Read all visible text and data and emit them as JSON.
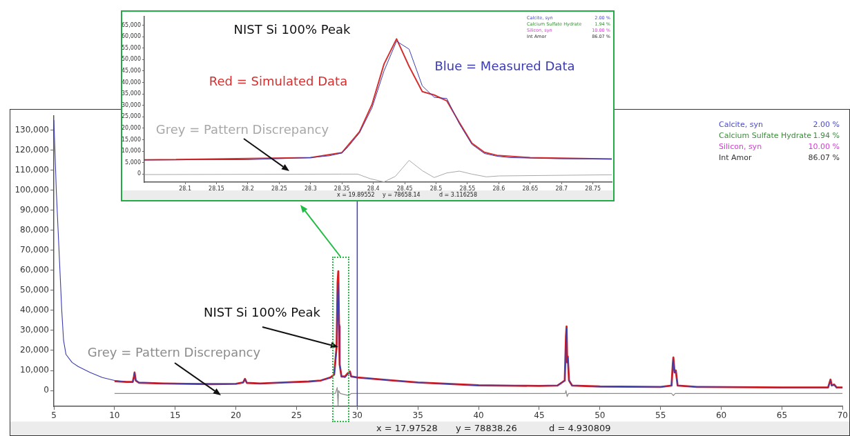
{
  "chart_data": [
    {
      "type": "line",
      "xlim": [
        5,
        70
      ],
      "ylim": [
        -7900,
        137000
      ],
      "xticks": [
        5,
        10,
        15,
        20,
        25,
        30,
        35,
        40,
        45,
        50,
        55,
        60,
        65,
        70
      ],
      "yticks": [
        0,
        {
          "value": 10000,
          "label": "10,000"
        },
        {
          "value": 20000,
          "label": "20,000"
        },
        {
          "value": 30000,
          "label": "30,000"
        },
        {
          "value": 40000,
          "label": "40,000"
        },
        {
          "value": 50000,
          "label": "50,000"
        },
        {
          "value": 60000,
          "label": "60,000"
        },
        {
          "value": 70000,
          "label": "70,000"
        },
        {
          "value": 80000,
          "label": "80,000"
        },
        {
          "value": 90000,
          "label": "90,000"
        },
        {
          "value": 100000,
          "label": "100,000"
        },
        {
          "value": 110000,
          "label": "110,000"
        },
        {
          "value": 120000,
          "label": "120,000"
        },
        {
          "value": 130000,
          "label": "130,000"
        }
      ],
      "series": [
        {
          "color": "#3b3bb0",
          "x": [
            5,
            5.1,
            5.2,
            5.35,
            5.5,
            5.65,
            5.8,
            6,
            6.5,
            7,
            8,
            9,
            10,
            11,
            11.5,
            11.6,
            11.65,
            11.75,
            12,
            14,
            16,
            18,
            20,
            20.6,
            20.75,
            20.9,
            22,
            24,
            26,
            27,
            27.8,
            28.1,
            28.3,
            28.38,
            28.44,
            28.5,
            28.55,
            28.7,
            29,
            29.2,
            29.4,
            29.5,
            30,
            31,
            33,
            35,
            40,
            43,
            45,
            46.5,
            47.1,
            47.2,
            47.25,
            47.3,
            47.35,
            47.45,
            47.7,
            50,
            55,
            55.9,
            56,
            56.05,
            56.15,
            56.25,
            56.4,
            58,
            65,
            68.8,
            69,
            69.1,
            69.3,
            69.5,
            70
          ],
          "values": [
            135000,
            118000,
            100000,
            80000,
            60000,
            40000,
            25000,
            18000,
            14000,
            12000,
            9000,
            6500,
            5000,
            4300,
            4200,
            7000,
            8800,
            5000,
            4000,
            3500,
            3300,
            3200,
            3300,
            4000,
            5800,
            3800,
            3500,
            4000,
            4500,
            5000,
            6500,
            8000,
            20000,
            48000,
            54000,
            33000,
            13000,
            7000,
            6500,
            8000,
            9000,
            7000,
            6500,
            6000,
            5000,
            4000,
            2500,
            2400,
            2300,
            2500,
            5000,
            25000,
            31000,
            14000,
            16500,
            5000,
            2500,
            2000,
            1800,
            2500,
            12000,
            16000,
            9000,
            9500,
            2500,
            1800,
            1500,
            1500,
            5000,
            2500,
            3000,
            1500,
            1500
          ]
        },
        {
          "color": "#d42020",
          "x": [
            10,
            11,
            11.5,
            11.6,
            11.65,
            11.75,
            12,
            14,
            16,
            18,
            20,
            20.6,
            20.75,
            20.9,
            22,
            24,
            26,
            27,
            27.8,
            28.1,
            28.3,
            28.38,
            28.44,
            28.5,
            28.55,
            28.7,
            29,
            29.2,
            29.4,
            29.5,
            30,
            31,
            33,
            35,
            40,
            43,
            45,
            46.5,
            47.1,
            47.2,
            47.25,
            47.3,
            47.35,
            47.45,
            47.7,
            50,
            55,
            55.9,
            56,
            56.05,
            56.15,
            56.25,
            56.4,
            58,
            65,
            68.8,
            69,
            69.1,
            69.3,
            69.5,
            70
          ],
          "values": [
            4600,
            4300,
            4300,
            7000,
            9000,
            5000,
            3900,
            3500,
            3300,
            3200,
            3300,
            4000,
            5800,
            3800,
            3500,
            4000,
            4500,
            5000,
            6500,
            8000,
            22000,
            54000,
            59500,
            32000,
            13000,
            7000,
            7000,
            8500,
            9500,
            7000,
            6500,
            6000,
            5000,
            4000,
            2600,
            2400,
            2300,
            2500,
            5000,
            27000,
            32000,
            14000,
            17000,
            5000,
            2500,
            2000,
            1800,
            2500,
            13000,
            16500,
            9000,
            10000,
            2500,
            1800,
            1500,
            1500,
            5500,
            2500,
            3000,
            1500,
            1500
          ]
        },
        {
          "name": "Grey = Pattern Discrepancy",
          "color": "#8c8c8c",
          "x": [
            10,
            15,
            20,
            25,
            28.2,
            28.35,
            28.42,
            28.46,
            28.6,
            29.3,
            29.5,
            40,
            47.15,
            47.2,
            47.3,
            47.4,
            55.9,
            56.05,
            56.2,
            70
          ],
          "values": [
            -1500,
            -1500,
            -1500,
            -1500,
            -1500,
            1500,
            -7500,
            0,
            -1500,
            -2500,
            -1500,
            -1500,
            -1500,
            0,
            -3000,
            -1500,
            -1500,
            -2500,
            -1500,
            -1500
          ]
        }
      ],
      "ref_lines": [
        {
          "axis": "x",
          "value": 30,
          "color": "#3c3cc0"
        }
      ],
      "annotations": [
        {
          "text": "NIST Si 100% Peak",
          "x": 28.47,
          "y": 21600
        },
        "Calcite, syn",
        "2.00 %",
        "Calcium Sulfate Hydrate",
        "1.94 %",
        "Silicon, syn",
        "10.00 %",
        "Int Amor",
        "86.07 %",
        "x = 17.97528",
        "y = 78838.26",
        "d = 4.930809"
      ]
    },
    {
      "type": "line",
      "title": "NIST Si 100% Peak",
      "xlim": [
        28.035,
        28.78
      ],
      "ylim": [
        -3500,
        68800
      ],
      "xticks": [
        28.1,
        28.15,
        28.2,
        28.25,
        28.3,
        28.35,
        28.4,
        28.45,
        28.5,
        28.55,
        28.6,
        28.65,
        28.7,
        28.75
      ],
      "yticks": [
        0,
        {
          "value": 5000,
          "label": "5,000"
        },
        {
          "value": 10000,
          "label": "10,000"
        },
        {
          "value": 15000,
          "label": "15,000"
        },
        {
          "value": 20000,
          "label": "20,000"
        },
        {
          "value": 25000,
          "label": "25,000"
        },
        {
          "value": 30000,
          "label": "30,000"
        },
        {
          "value": 35000,
          "label": "35,000"
        },
        {
          "value": 40000,
          "label": "40,000"
        },
        {
          "value": 45000,
          "label": "45,000"
        },
        {
          "value": 50000,
          "label": "50,000"
        },
        {
          "value": 55000,
          "label": "55,000"
        },
        {
          "value": 60000,
          "label": "60,000"
        },
        {
          "value": 65000,
          "label": "65,000"
        }
      ],
      "series": [
        {
          "name": "Blue = Measured Data",
          "color": "#3b3bb0",
          "x": [
            28.035,
            28.2,
            28.3,
            28.33,
            28.35,
            28.36,
            28.378,
            28.398,
            28.417,
            28.437,
            28.457,
            28.478,
            28.497,
            28.517,
            28.537,
            28.557,
            28.577,
            28.597,
            28.617,
            28.65,
            28.7,
            28.78
          ],
          "values": [
            6200,
            6300,
            7200,
            8000,
            9200,
            12000,
            18000,
            29000,
            45000,
            58000,
            54500,
            38500,
            33500,
            33000,
            22000,
            13000,
            9000,
            7800,
            7200,
            7000,
            6700,
            6600
          ]
        },
        {
          "name": "Red = Simulated Data",
          "color": "#d43030",
          "x": [
            28.035,
            28.3,
            28.35,
            28.378,
            28.398,
            28.417,
            28.437,
            28.457,
            28.478,
            28.497,
            28.517,
            28.537,
            28.557,
            28.577,
            28.597,
            28.65,
            28.78
          ],
          "values": [
            6200,
            7200,
            9400,
            18500,
            30500,
            48000,
            59000,
            47000,
            36000,
            34500,
            32000,
            22500,
            13500,
            9500,
            8200,
            7200,
            6600
          ]
        },
        {
          "name": "Grey = Pattern Discrepancy",
          "color": "#a8a8a8",
          "x": [
            28.035,
            28.35,
            28.375,
            28.395,
            28.417,
            28.435,
            28.457,
            28.478,
            28.497,
            28.517,
            28.537,
            28.557,
            28.58,
            28.6,
            28.78
          ],
          "values": [
            -200,
            0,
            0,
            -2000,
            -3400,
            -1000,
            6000,
            1500,
            -1500,
            500,
            1300,
            0,
            -1200,
            -800,
            -300
          ]
        }
      ],
      "annotations": [
        "Calcite, syn",
        "2.00 %",
        "Calcium Sulfate Hydrate",
        "1.94 %",
        "Silicon, syn",
        "10.00 %",
        "Int Amor",
        "86.07 %",
        "x = 19.89552",
        "y = 78658.14",
        "d = 3.116258"
      ]
    }
  ]
}
